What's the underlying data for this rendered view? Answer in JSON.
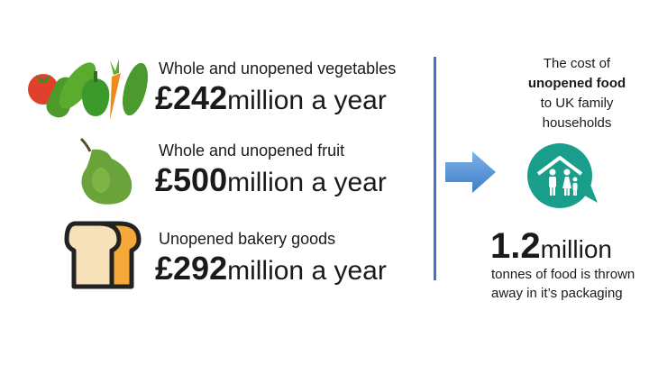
{
  "items": [
    {
      "caption": "Whole and unopened vegetables",
      "amount": "£242",
      "unit": "million a year",
      "icon": "vegetables-icon"
    },
    {
      "caption": "Whole and unopened fruit",
      "amount": "£500",
      "unit": "million a year",
      "icon": "pear-icon"
    },
    {
      "caption": "Unopened bakery goods",
      "amount": "£292",
      "unit": "million a year",
      "icon": "bread-icon"
    }
  ],
  "cost": {
    "line1": "The cost of",
    "bold": "unopened food",
    "line3": "to UK family",
    "line4": "households"
  },
  "stat": {
    "value": "1.2",
    "unit": "million",
    "description": "tonnes of food is thrown away in it’s packaging"
  },
  "colors": {
    "divider": "#4472c4",
    "arrow": "#5b9bd5",
    "house": "#1a9e8c"
  }
}
